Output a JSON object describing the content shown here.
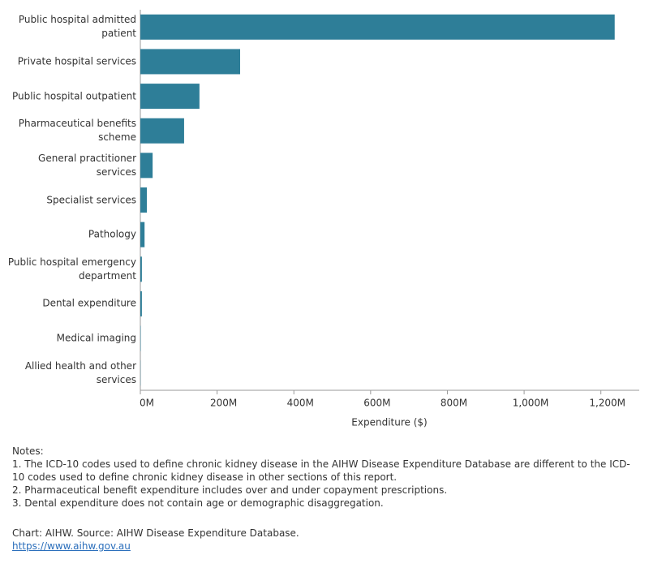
{
  "chart_data": {
    "type": "hbar",
    "x_label": "Expenditure ($)",
    "categories": [
      "Public hospital admitted patient",
      "Private hospital services",
      "Public hospital outpatient",
      "Pharmaceutical benefits scheme",
      "General practitioner services",
      "Specialist services",
      "Pathology",
      "Public hospital emergency department",
      "Dental expenditure",
      "Medical imaging",
      "Allied health and other services"
    ],
    "values": [
      1236,
      260,
      154,
      114,
      32,
      17,
      11,
      4,
      4,
      1,
      0.5
    ],
    "color": "#2e7e98",
    "xlim": [
      0,
      1300
    ],
    "xticks": [
      {
        "value": 0,
        "label": "0M"
      },
      {
        "value": 200,
        "label": "200M"
      },
      {
        "value": 400,
        "label": "400M"
      },
      {
        "value": 600,
        "label": "600M"
      },
      {
        "value": 800,
        "label": "800M"
      },
      {
        "value": 1000,
        "label": "1,000M"
      },
      {
        "value": 1200,
        "label": "1,200M"
      }
    ]
  },
  "notes": {
    "heading": "Notes:",
    "items": [
      "1. The ICD-10 codes used to define chronic kidney disease in the AIHW Disease Expenditure Database are different to the ICD-10 codes used to define chronic kidney disease in other sections of this report.",
      "2. Pharmaceutical benefit expenditure includes over and under copayment prescriptions.",
      "3. Dental expenditure does not contain age or demographic disaggregation."
    ]
  },
  "source": "Chart: AIHW. Source: AIHW Disease Expenditure Database.",
  "link": "https://www.aihw.gov.au"
}
